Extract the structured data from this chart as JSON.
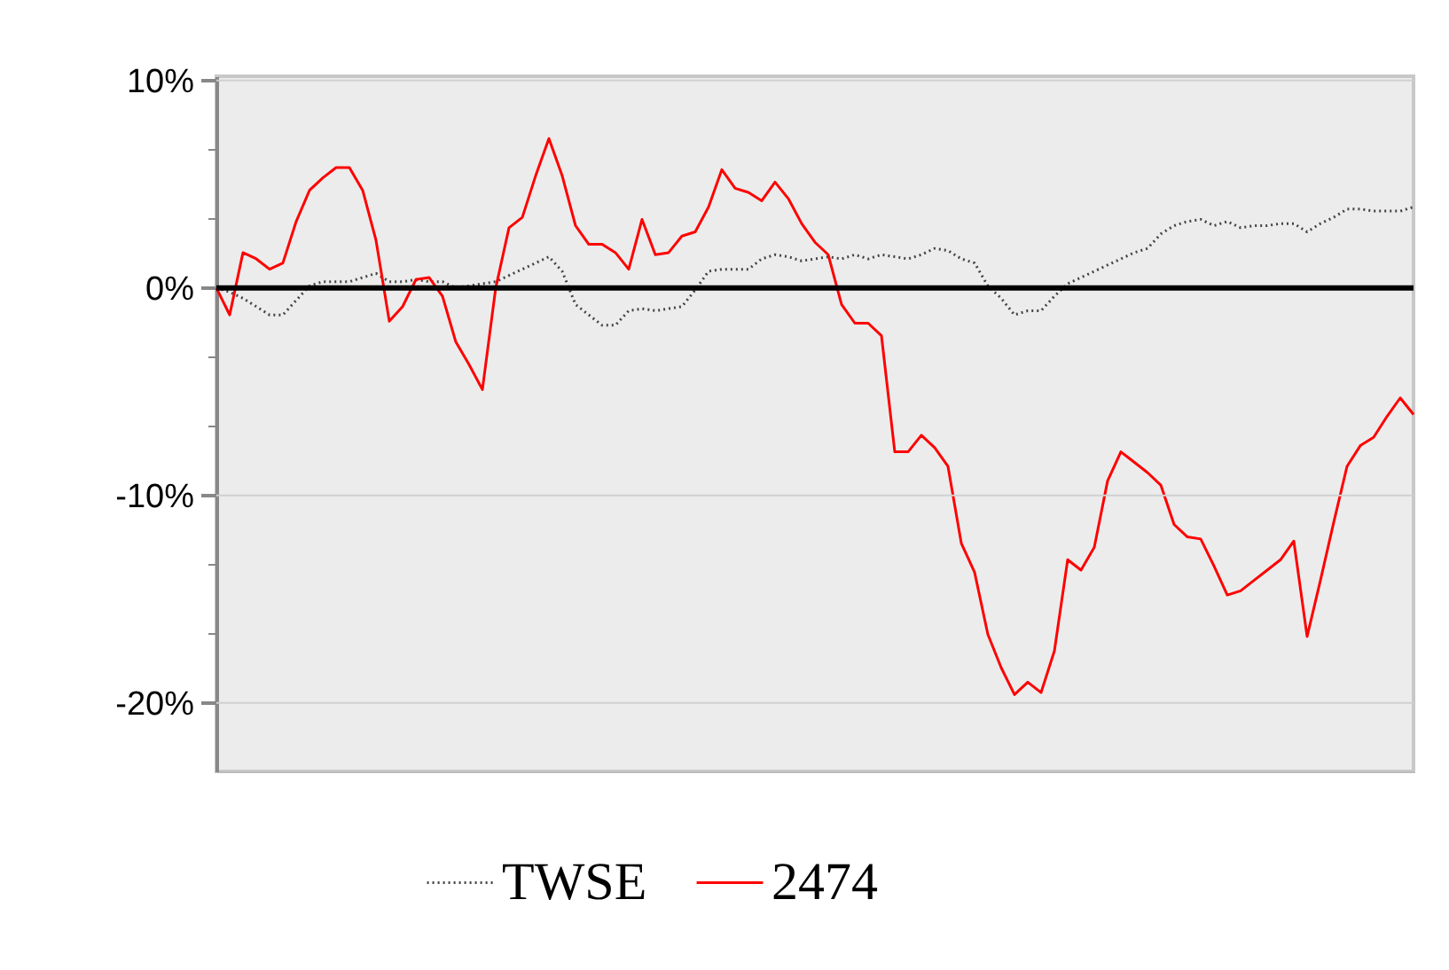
{
  "chart_data": {
    "type": "line",
    "categories": [
      null,
      null,
      null,
      null,
      null,
      null,
      null,
      null,
      null,
      null,
      null,
      null,
      null,
      null,
      null,
      null,
      null,
      null,
      null,
      null,
      null,
      null,
      null,
      null,
      null,
      null,
      null,
      null,
      null,
      null,
      null,
      null,
      null,
      null,
      null,
      null,
      null,
      null,
      null,
      null,
      null,
      null,
      null,
      null,
      null,
      null,
      null,
      null,
      null,
      null,
      null,
      null,
      null,
      null,
      null,
      null,
      null,
      null,
      null,
      null,
      null,
      null,
      null,
      null,
      null,
      null,
      null,
      null,
      null,
      null,
      null,
      null,
      null,
      null,
      null,
      null,
      null,
      null,
      null,
      null,
      null,
      null,
      null,
      null,
      null,
      null,
      null,
      null,
      null,
      null,
      null
    ],
    "series": [
      {
        "name": "TWSE",
        "color": "#444444",
        "line_style": "dotted",
        "values": [
          0.0,
          -0.2,
          -0.5,
          -0.9,
          -1.3,
          -1.3,
          -0.6,
          0.1,
          0.3,
          0.3,
          0.3,
          0.5,
          0.7,
          0.3,
          0.3,
          0.4,
          0.3,
          0.3,
          0.0,
          0.1,
          0.2,
          0.3,
          0.6,
          0.9,
          1.2,
          1.5,
          0.8,
          -0.8,
          -1.3,
          -1.8,
          -1.8,
          -1.1,
          -1.0,
          -1.1,
          -1.0,
          -0.9,
          -0.1,
          0.8,
          0.9,
          0.9,
          0.9,
          1.4,
          1.6,
          1.5,
          1.3,
          1.4,
          1.5,
          1.4,
          1.6,
          1.4,
          1.6,
          1.5,
          1.4,
          1.6,
          1.9,
          1.8,
          1.4,
          1.2,
          0.1,
          -0.5,
          -1.3,
          -1.1,
          -1.1,
          -0.4,
          0.2,
          0.5,
          0.8,
          1.1,
          1.4,
          1.7,
          1.9,
          2.6,
          3.0,
          3.2,
          3.3,
          3.0,
          3.2,
          2.9,
          3.0,
          3.0,
          3.1,
          3.1,
          2.7,
          3.1,
          3.4,
          3.8,
          3.8,
          3.7,
          3.7,
          3.7,
          3.9
        ]
      },
      {
        "name": "2474",
        "color": "#ff0000",
        "line_style": "solid",
        "values": [
          0.0,
          -1.3,
          1.7,
          1.4,
          0.9,
          1.2,
          3.2,
          4.7,
          5.3,
          5.8,
          5.8,
          4.7,
          2.3,
          -1.6,
          -0.9,
          0.4,
          0.5,
          -0.4,
          -2.6,
          -3.7,
          -4.9,
          0.0,
          2.9,
          3.4,
          5.4,
          7.2,
          5.4,
          3.0,
          2.1,
          2.1,
          1.7,
          0.9,
          3.3,
          1.6,
          1.7,
          2.5,
          2.7,
          3.9,
          5.7,
          4.8,
          4.6,
          4.2,
          5.1,
          4.3,
          3.1,
          2.2,
          1.6,
          -0.8,
          -1.7,
          -1.7,
          -2.3,
          -7.9,
          -7.9,
          -7.1,
          -7.7,
          -8.6,
          -12.3,
          -13.7,
          -16.7,
          -18.3,
          -19.6,
          -19.0,
          -19.5,
          -17.5,
          -13.1,
          -13.6,
          -12.5,
          -9.3,
          -7.9,
          -8.4,
          -8.9,
          -9.5,
          -11.4,
          -12.0,
          -12.1,
          -13.4,
          -14.8,
          -14.6,
          -14.1,
          -13.6,
          -13.1,
          -12.2,
          -16.8,
          -14.1,
          -11.3,
          -8.6,
          -7.6,
          -7.2,
          -6.2,
          -5.3,
          -6.1
        ]
      }
    ],
    "ylim": [
      -23.3,
      10.2
    ],
    "yticks": [
      {
        "value": 10,
        "label": "10%"
      },
      {
        "value": 6.67,
        "label": null
      },
      {
        "value": 3.33,
        "label": null
      },
      {
        "value": 0,
        "label": "0%"
      },
      {
        "value": -3.33,
        "label": null
      },
      {
        "value": -6.67,
        "label": null
      },
      {
        "value": -10,
        "label": "-10%"
      },
      {
        "value": -13.33,
        "label": null
      },
      {
        "value": -16.67,
        "label": null
      },
      {
        "value": -20,
        "label": "-20%"
      }
    ],
    "ref_lines": [
      {
        "axis": "y",
        "value": 0,
        "color": "#000000"
      }
    ],
    "grid": "y",
    "legend": "bottom",
    "tick_labels": "y",
    "marker": "none"
  }
}
